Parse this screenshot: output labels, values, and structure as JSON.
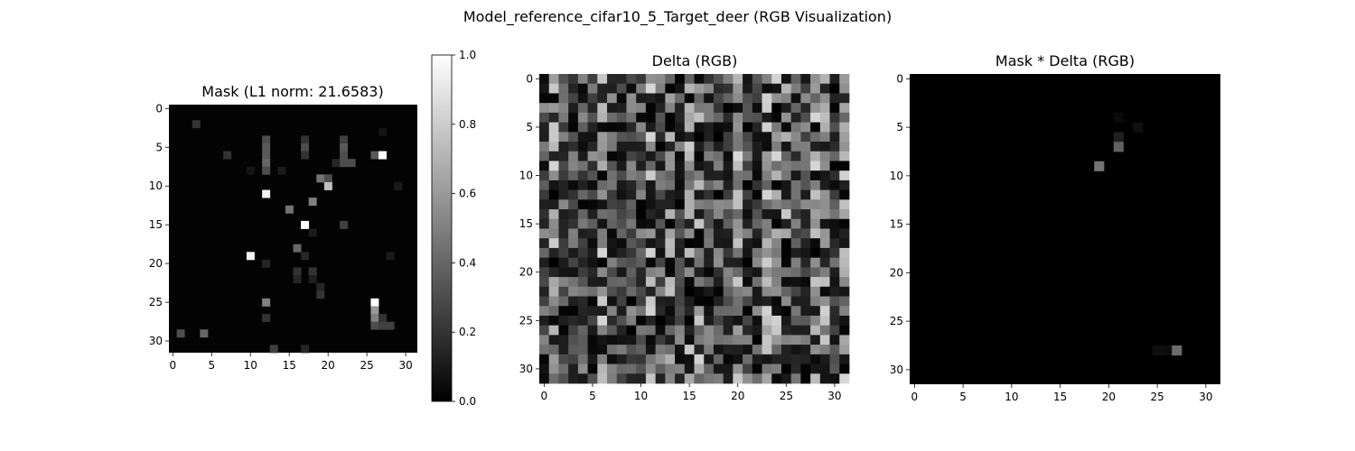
{
  "figure": {
    "suptitle": "Model_reference_cifar10_5_Target_deer (RGB Visualization)"
  },
  "chart_data": [
    {
      "type": "heatmap",
      "title": "Mask (L1 norm: 21.6583)",
      "grid_size": 32,
      "xlim": [
        -0.5,
        31.5
      ],
      "ylim": [
        31.5,
        -0.5
      ],
      "xticks": [
        0,
        5,
        10,
        15,
        20,
        25,
        30
      ],
      "yticks": [
        0,
        5,
        10,
        15,
        20,
        25,
        30
      ],
      "colormap": "gray",
      "background_value": 0.01,
      "cells": [
        [
          2,
          3,
          0.2
        ],
        [
          3,
          27,
          0.08
        ],
        [
          4,
          12,
          0.3
        ],
        [
          4,
          17,
          0.2
        ],
        [
          4,
          22,
          0.25
        ],
        [
          5,
          12,
          0.35
        ],
        [
          5,
          17,
          0.3
        ],
        [
          5,
          22,
          0.35
        ],
        [
          6,
          7,
          0.2
        ],
        [
          6,
          12,
          0.35
        ],
        [
          6,
          17,
          0.2
        ],
        [
          6,
          22,
          0.3
        ],
        [
          6,
          26,
          0.35
        ],
        [
          6,
          27,
          1.0
        ],
        [
          7,
          12,
          0.4
        ],
        [
          7,
          21,
          0.15
        ],
        [
          7,
          22,
          0.3
        ],
        [
          7,
          23,
          0.3
        ],
        [
          8,
          10,
          0.08
        ],
        [
          8,
          12,
          0.3
        ],
        [
          8,
          14,
          0.1
        ],
        [
          9,
          19,
          0.45
        ],
        [
          9,
          20,
          0.3
        ],
        [
          10,
          20,
          0.75
        ],
        [
          10,
          29,
          0.1
        ],
        [
          11,
          12,
          0.95
        ],
        [
          12,
          18,
          0.5
        ],
        [
          13,
          15,
          0.45
        ],
        [
          15,
          17,
          0.98
        ],
        [
          15,
          22,
          0.25
        ],
        [
          16,
          18,
          0.1
        ],
        [
          18,
          16,
          0.4
        ],
        [
          19,
          10,
          0.95
        ],
        [
          19,
          17,
          0.15
        ],
        [
          19,
          28,
          0.1
        ],
        [
          20,
          12,
          0.15
        ],
        [
          21,
          16,
          0.2
        ],
        [
          21,
          18,
          0.2
        ],
        [
          22,
          16,
          0.15
        ],
        [
          22,
          18,
          0.12
        ],
        [
          23,
          19,
          0.15
        ],
        [
          24,
          19,
          0.2
        ],
        [
          25,
          12,
          0.5
        ],
        [
          25,
          26,
          1.0
        ],
        [
          26,
          26,
          0.6
        ],
        [
          27,
          12,
          0.2
        ],
        [
          27,
          26,
          0.5
        ],
        [
          27,
          27,
          0.2
        ],
        [
          28,
          26,
          0.3
        ],
        [
          28,
          27,
          0.25
        ],
        [
          28,
          28,
          0.25
        ],
        [
          29,
          1,
          0.3
        ],
        [
          29,
          4,
          0.4
        ],
        [
          31,
          13,
          0.25
        ],
        [
          31,
          17,
          0.15
        ]
      ]
    },
    {
      "type": "heatmap",
      "title": "Delta (RGB)",
      "grid_size": 32,
      "xlim": [
        -0.5,
        31.5
      ],
      "ylim": [
        31.5,
        -0.5
      ],
      "xticks": [
        0,
        5,
        10,
        15,
        20,
        25,
        30
      ],
      "yticks": [
        0,
        5,
        10,
        15,
        20,
        25,
        30
      ],
      "colormap": "gray",
      "pattern": "dense_random_vertical_stripes",
      "value_range": [
        0,
        0.85
      ]
    },
    {
      "type": "heatmap",
      "title": "Mask * Delta (RGB)",
      "grid_size": 32,
      "xlim": [
        -0.5,
        31.5
      ],
      "ylim": [
        31.5,
        -0.5
      ],
      "xticks": [
        0,
        5,
        10,
        15,
        20,
        25,
        30
      ],
      "yticks": [
        0,
        5,
        10,
        15,
        20,
        25,
        30
      ],
      "colormap": "gray",
      "background_value": 0.0,
      "cells": [
        [
          6,
          21,
          0.12
        ],
        [
          5,
          23,
          0.06
        ],
        [
          7,
          21,
          0.38
        ],
        [
          9,
          19,
          0.45
        ],
        [
          28,
          27,
          0.42
        ],
        [
          28,
          25,
          0.06
        ],
        [
          28,
          26,
          0.05
        ],
        [
          4,
          21,
          0.04
        ]
      ]
    }
  ],
  "colorbar": {
    "ticks": [
      0.0,
      0.2,
      0.4,
      0.6,
      0.8,
      1.0
    ],
    "tick_labels": [
      "0.0",
      "0.2",
      "0.4",
      "0.6",
      "0.8",
      "1.0"
    ],
    "range": [
      0.0,
      1.0
    ]
  }
}
